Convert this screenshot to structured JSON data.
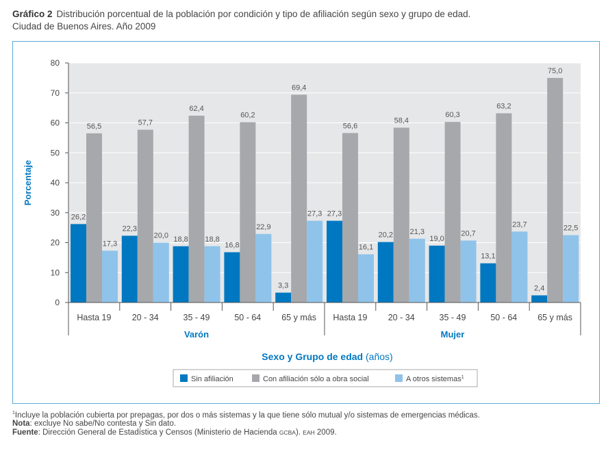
{
  "header": {
    "label": "Gráfico 2",
    "text": "Distribución porcentual de la población por condición y tipo de afiliación según sexo y grupo de edad.",
    "line2": "Ciudad de Buenos Aires. Año 2009"
  },
  "chart_data": {
    "type": "bar",
    "ylabel": "Porcentaje",
    "xlabel_bold": "Sexo y Grupo de edad",
    "xlabel_normal": " (años)",
    "ylim": [
      0,
      80
    ],
    "yticks": [
      0,
      10,
      20,
      30,
      40,
      50,
      60,
      70,
      80
    ],
    "groups": [
      "Varón",
      "Mujer"
    ],
    "categories": [
      "Hasta 19",
      "20 - 34",
      "35 - 49",
      "50 - 64",
      "65 y más",
      "Hasta 19",
      "20 - 34",
      "35 - 49",
      "50 - 64",
      "65 y más"
    ],
    "series": [
      {
        "name": "Sin afiliación",
        "color": "#0078c1",
        "values": [
          26.2,
          22.3,
          18.8,
          16.8,
          3.3,
          27.3,
          20.2,
          19.0,
          13.1,
          2.4
        ],
        "labels": [
          "26,2",
          "22,3",
          "18,8",
          "16,8",
          "3,3",
          "27,3",
          "20,2",
          "19,0",
          "13,1",
          "2,4"
        ]
      },
      {
        "name": "Con afiliación sólo a obra social",
        "color": "#a6a8ab",
        "values": [
          56.5,
          57.7,
          62.4,
          60.2,
          69.4,
          56.6,
          58.4,
          60.3,
          63.2,
          75.0
        ],
        "labels": [
          "56,5",
          "57,7",
          "62,4",
          "60,2",
          "69,4",
          "56,6",
          "58,4",
          "60,3",
          "63,2",
          "75,0"
        ]
      },
      {
        "name": "A otros sistemas",
        "sup": "1",
        "color": "#8fc3ea",
        "values": [
          17.3,
          20.0,
          18.8,
          22.9,
          27.3,
          16.1,
          21.3,
          20.7,
          23.7,
          22.5
        ],
        "labels": [
          "17,3",
          "20,0",
          "18,8",
          "22,9",
          "27,3",
          "16,1",
          "21,3",
          "20,7",
          "23,7",
          "22,5"
        ]
      }
    ]
  },
  "footnotes": {
    "note1_sup": "1",
    "note1": "Incluye la población cubierta por prepagas, por dos o más sistemas y la que tiene sólo mutual y/o sistemas de emergencias médicas.",
    "nota_label": "Nota",
    "nota": ": excluye No sabe/No contesta y Sin dato.",
    "fuente_label": "Fuente",
    "fuente_a": ": Dirección General de Estadística y Censos (Ministerio de Hacienda ",
    "fuente_gcba": "GCBA",
    "fuente_b": "). ",
    "fuente_eah": "EAH",
    "fuente_c": " 2009."
  }
}
